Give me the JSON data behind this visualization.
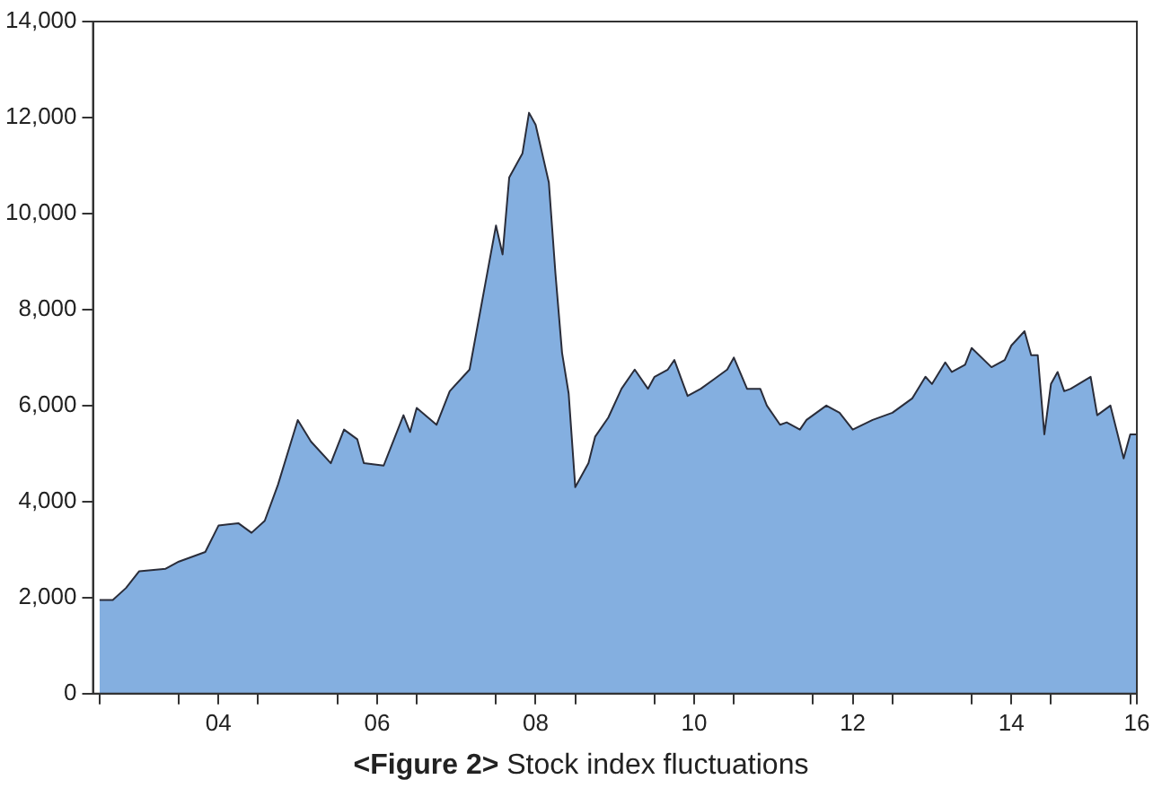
{
  "chart_data": {
    "type": "area",
    "title": "<Figure 2> Stock index fluctuations",
    "x": [
      "2003-01",
      "2003-03",
      "2003-05",
      "2003-07",
      "2003-11",
      "2004-01",
      "2004-05",
      "2004-07",
      "2004-10",
      "2004-12",
      "2005-02",
      "2005-04",
      "2005-07",
      "2005-09",
      "2005-12",
      "2006-02",
      "2006-04",
      "2006-05",
      "2006-08",
      "2006-11",
      "2006-12",
      "2007-01",
      "2007-04",
      "2007-06",
      "2007-09",
      "2007-11",
      "2008-01",
      "2008-02",
      "2008-03",
      "2008-05",
      "2008-06",
      "2008-07",
      "2008-09",
      "2008-10",
      "2008-11",
      "2008-12",
      "2009-01",
      "2009-03",
      "2009-04",
      "2009-06",
      "2009-08",
      "2009-10",
      "2009-12",
      "2010-01",
      "2010-03",
      "2010-04",
      "2010-06",
      "2010-08",
      "2010-10",
      "2010-12",
      "2011-01",
      "2011-03",
      "2011-05",
      "2011-06",
      "2011-08",
      "2011-09",
      "2011-11",
      "2011-12",
      "2012-03",
      "2012-05",
      "2012-07",
      "2012-10",
      "2013-01",
      "2013-04",
      "2013-06",
      "2013-07",
      "2013-09",
      "2013-10",
      "2013-12",
      "2014-01",
      "2014-04",
      "2014-06",
      "2014-07",
      "2014-09",
      "2014-10",
      "2014-11",
      "2014-12",
      "2015-01",
      "2015-02",
      "2015-03",
      "2015-04",
      "2015-07",
      "2015-08",
      "2015-10",
      "2015-11",
      "2015-12",
      "2016-01",
      "2016-02"
    ],
    "series": [
      {
        "color": "#84afe0",
        "values": [
          1950,
          1950,
          2200,
          2550,
          2600,
          2750,
          2950,
          3500,
          3550,
          3350,
          3600,
          4350,
          5700,
          5250,
          4800,
          5500,
          5300,
          4800,
          4750,
          5800,
          5450,
          5950,
          5600,
          6300,
          6750,
          8250,
          9750,
          9150,
          10750,
          11250,
          12100,
          11850,
          10650,
          8750,
          7100,
          6250,
          4300,
          4800,
          5350,
          5750,
          6350,
          6750,
          6350,
          6600,
          6750,
          6950,
          6200,
          6350,
          6550,
          6750,
          7000,
          6350,
          6350,
          6000,
          5600,
          5650,
          5500,
          5700,
          6000,
          5850,
          5500,
          5700,
          5850,
          6150,
          6600,
          6450,
          6900,
          6700,
          6850,
          7200,
          6800,
          6950,
          7250,
          7550,
          7050,
          7050,
          5400,
          6450,
          6700,
          6300,
          6350,
          6600,
          5800,
          6000,
          5450,
          4900,
          5400,
          5400
        ]
      }
    ],
    "xlim": [
      "2002-12",
      "2016-02"
    ],
    "xticks": [
      {
        "value": "2003-01",
        "label": null
      },
      {
        "value": "2004-01",
        "label": null
      },
      {
        "value": "2004-07",
        "label": "04"
      },
      {
        "value": "2005-01",
        "label": null
      },
      {
        "value": "2006-01",
        "label": null
      },
      {
        "value": "2006-07",
        "label": "06"
      },
      {
        "value": "2007-01",
        "label": null
      },
      {
        "value": "2008-01",
        "label": null
      },
      {
        "value": "2008-07",
        "label": "08"
      },
      {
        "value": "2009-01",
        "label": null
      },
      {
        "value": "2010-01",
        "label": null
      },
      {
        "value": "2010-07",
        "label": "10"
      },
      {
        "value": "2011-01",
        "label": null
      },
      {
        "value": "2012-01",
        "label": null
      },
      {
        "value": "2012-07",
        "label": "12"
      },
      {
        "value": "2013-01",
        "label": null
      },
      {
        "value": "2014-01",
        "label": null
      },
      {
        "value": "2014-07",
        "label": "14"
      },
      {
        "value": "2015-01",
        "label": null
      },
      {
        "value": "2016-01",
        "label": null
      },
      {
        "value": "2016-02",
        "label": "16"
      }
    ],
    "ylim": [
      0,
      14000
    ],
    "yticks": [
      {
        "value": 0,
        "label": "0"
      },
      {
        "value": 2000,
        "label": "2,000"
      },
      {
        "value": 4000,
        "label": "4,000"
      },
      {
        "value": 6000,
        "label": "6,000"
      },
      {
        "value": 8000,
        "label": "8,000"
      },
      {
        "value": 10000,
        "label": "10,000"
      },
      {
        "value": 12000,
        "label": "12,000"
      },
      {
        "value": 14000,
        "label": "14,000"
      }
    ],
    "grid": false,
    "legend": false
  }
}
